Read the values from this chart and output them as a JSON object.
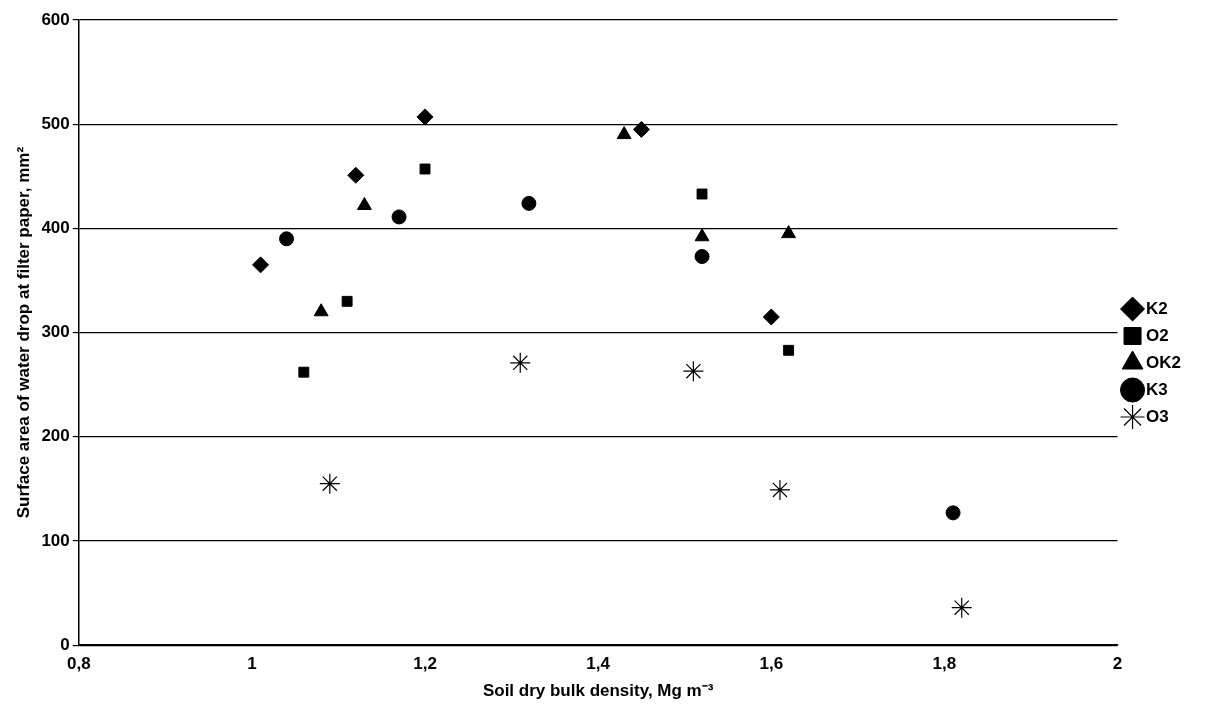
{
  "chart_data": {
    "type": "scatter",
    "xlabel": "Soil dry bulk density, Mg m⁻³",
    "ylabel": "Surface area of water drop at filter paper, mm²",
    "xlim": [
      0.8,
      2
    ],
    "xticks": [
      {
        "value": 0.8,
        "label": "0,8"
      },
      1,
      {
        "value": 1.2,
        "label": "1,2"
      },
      {
        "value": 1.4,
        "label": "1,4"
      },
      {
        "value": 1.6,
        "label": "1,6"
      },
      {
        "value": 1.8,
        "label": "1,8"
      },
      2
    ],
    "ylim": [
      0,
      600
    ],
    "yticks": [
      0,
      100,
      200,
      300,
      400,
      500,
      600
    ],
    "grid": "y",
    "legend": "right",
    "series": [
      {
        "name": "K2",
        "color": "#000000",
        "marker": "diamond",
        "x": [
          1.01,
          1.12,
          1.2,
          1.45,
          1.6
        ],
        "values": [
          365,
          451,
          507,
          495,
          315
        ]
      },
      {
        "name": "O2",
        "color": "#000000",
        "marker": "square",
        "x": [
          1.06,
          1.11,
          1.2,
          1.52,
          1.62
        ],
        "values": [
          262,
          330,
          457,
          433,
          283
        ]
      },
      {
        "name": "OK2",
        "color": "#000000",
        "marker": "triangle",
        "x": [
          1.08,
          1.13,
          1.43,
          1.52,
          1.62
        ],
        "values": [
          320,
          422,
          490,
          392,
          395
        ]
      },
      {
        "name": "K3",
        "color": "#000000",
        "marker": "circle",
        "x": [
          1.04,
          1.17,
          1.32,
          1.52,
          1.81
        ],
        "values": [
          390,
          411,
          424,
          373,
          127
        ]
      },
      {
        "name": "O3",
        "color": "#000000",
        "marker": "cross",
        "x": [
          1.09,
          1.31,
          1.51,
          1.61,
          1.82
        ],
        "values": [
          155,
          271,
          263,
          149,
          36
        ]
      }
    ]
  }
}
